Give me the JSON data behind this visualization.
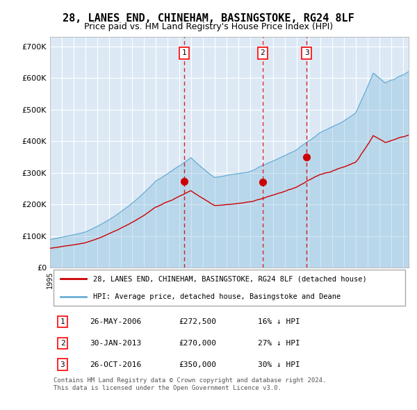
{
  "title": "28, LANES END, CHINEHAM, BASINGSTOKE, RG24 8LF",
  "subtitle": "Price paid vs. HM Land Registry's House Price Index (HPI)",
  "title_fontsize": 11,
  "subtitle_fontsize": 9,
  "background_color": "#ffffff",
  "plot_bg_color": "#dce9f5",
  "hpi_color": "#6baed6",
  "price_color": "#cc0000",
  "sale_marker_color": "#cc0000",
  "vline_color": "#cc0000",
  "ylabel_ticks": [
    "£0",
    "£100K",
    "£200K",
    "£300K",
    "£400K",
    "£500K",
    "£600K",
    "£700K"
  ],
  "ylim": [
    0,
    730000
  ],
  "xlim_start": 1995.0,
  "xlim_end": 2025.5,
  "legend_line1": "28, LANES END, CHINEHAM, BASINGSTOKE, RG24 8LF (detached house)",
  "legend_line2": "HPI: Average price, detached house, Basingstoke and Deane",
  "sales": [
    {
      "num": 1,
      "date": "26-MAY-2006",
      "price": 272500,
      "year": 2006.4
    },
    {
      "num": 2,
      "date": "30-JAN-2013",
      "price": 270000,
      "year": 2013.08
    },
    {
      "num": 3,
      "date": "26-OCT-2016",
      "price": 350000,
      "year": 2016.82
    }
  ],
  "table_rows": [
    [
      "1",
      "26-MAY-2006",
      "£272,500",
      "16% ↓ HPI"
    ],
    [
      "2",
      "30-JAN-2013",
      "£270,000",
      "27% ↓ HPI"
    ],
    [
      "3",
      "26-OCT-2016",
      "£350,000",
      "30% ↓ HPI"
    ]
  ],
  "footnote": "Contains HM Land Registry data © Crown copyright and database right 2024.\nThis data is licensed under the Open Government Licence v3.0.",
  "hpi_seed": 95000,
  "price_seed": 90000
}
